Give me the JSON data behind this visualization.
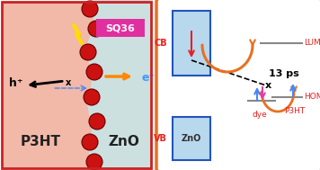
{
  "fig_w": 3.56,
  "fig_h": 1.89,
  "dpi": 100,
  "left": {
    "bg_color": "#f2b8a8",
    "zno_color": "#cce0e0",
    "border_color": "#cc2222",
    "sq36_bg": "#e030a0",
    "ball_color": "#cc1111",
    "ball_edge": "#660000",
    "p3ht_label": "P3HT",
    "zno_label": "ZnO",
    "sq36_label": "SQ36",
    "h_label": "h⁺",
    "e_label": "e⁻",
    "x_label": "x"
  },
  "right": {
    "border_color": "#e87020",
    "box_fill": "#b8d8ee",
    "box_edge": "#2255bb",
    "arrow_color": "#e87020",
    "red_color": "#e82020",
    "blue_color": "#4488ff",
    "pink_color": "#e040a0",
    "gray_color": "#888888",
    "cb_label": "CB",
    "vb_label": "VB",
    "zno_label": "ZnO",
    "lumo_label": "LUMO",
    "homo_label": "HOMO",
    "p3ht_label": "P3HT",
    "dye_label": "dye",
    "ps_label": "13 ps",
    "x_label": "x"
  }
}
